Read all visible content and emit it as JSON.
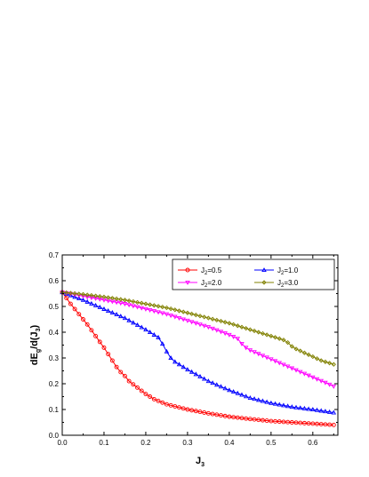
{
  "chart_data": {
    "type": "line",
    "xlabel_main": "J",
    "xlabel_sub": "3",
    "ylabel_parts": [
      {
        "text": "dE",
        "sub": false
      },
      {
        "text": "g",
        "sub": true
      },
      {
        "text": "/d(J",
        "sub": false
      },
      {
        "text": "3",
        "sub": true
      },
      {
        "text": ")",
        "sub": false
      }
    ],
    "xlim": [
      0.0,
      0.66
    ],
    "ylim": [
      0.0,
      0.7
    ],
    "xticks": [
      "0.0",
      "0.1",
      "0.2",
      "0.3",
      "0.4",
      "0.5",
      "0.6"
    ],
    "yticks": [
      "0.0",
      "0.1",
      "0.2",
      "0.3",
      "0.4",
      "0.5",
      "0.6",
      "0.7"
    ],
    "grid": false,
    "legend_position": "top-right",
    "series": [
      {
        "label_main": "J",
        "label_sub": "2",
        "label_rest": "=0.5",
        "color": "#ff0000",
        "marker": "circle",
        "x": [
          0.0,
          0.02,
          0.04,
          0.06,
          0.08,
          0.1,
          0.11,
          0.12,
          0.13,
          0.14,
          0.15,
          0.16,
          0.18,
          0.2,
          0.22,
          0.25,
          0.3,
          0.35,
          0.4,
          0.45,
          0.5,
          0.55,
          0.6,
          0.65
        ],
        "y": [
          0.555,
          0.51,
          0.47,
          0.43,
          0.385,
          0.34,
          0.315,
          0.29,
          0.265,
          0.245,
          0.23,
          0.21,
          0.185,
          0.16,
          0.14,
          0.12,
          0.1,
          0.085,
          0.072,
          0.063,
          0.055,
          0.05,
          0.045,
          0.04
        ]
      },
      {
        "label_main": "J",
        "label_sub": "2",
        "label_rest": "=1.0",
        "color": "#0000ff",
        "marker": "triangle-up",
        "x": [
          0.0,
          0.05,
          0.1,
          0.15,
          0.2,
          0.23,
          0.24,
          0.25,
          0.26,
          0.27,
          0.3,
          0.35,
          0.4,
          0.45,
          0.5,
          0.55,
          0.6,
          0.65
        ],
        "y": [
          0.555,
          0.525,
          0.49,
          0.455,
          0.41,
          0.38,
          0.355,
          0.325,
          0.3,
          0.285,
          0.255,
          0.21,
          0.175,
          0.145,
          0.125,
          0.11,
          0.1,
          0.088
        ]
      },
      {
        "label_main": "J",
        "label_sub": "2",
        "label_rest": "=2.0",
        "color": "#ff00ff",
        "marker": "triangle-down",
        "x": [
          0.0,
          0.05,
          0.1,
          0.15,
          0.2,
          0.25,
          0.3,
          0.35,
          0.4,
          0.42,
          0.43,
          0.44,
          0.45,
          0.5,
          0.55,
          0.6,
          0.65
        ],
        "y": [
          0.555,
          0.54,
          0.525,
          0.51,
          0.49,
          0.47,
          0.445,
          0.42,
          0.39,
          0.375,
          0.355,
          0.34,
          0.33,
          0.295,
          0.26,
          0.225,
          0.19
        ]
      },
      {
        "label_main": "J",
        "label_sub": "2",
        "label_rest": "=3.0",
        "color": "#808000",
        "marker": "diamond",
        "x": [
          0.0,
          0.05,
          0.1,
          0.15,
          0.2,
          0.25,
          0.3,
          0.35,
          0.4,
          0.45,
          0.5,
          0.53,
          0.54,
          0.55,
          0.56,
          0.58,
          0.6,
          0.62,
          0.65
        ],
        "y": [
          0.555,
          0.547,
          0.537,
          0.525,
          0.51,
          0.495,
          0.475,
          0.455,
          0.435,
          0.41,
          0.385,
          0.37,
          0.36,
          0.345,
          0.335,
          0.32,
          0.305,
          0.29,
          0.275
        ]
      }
    ]
  }
}
